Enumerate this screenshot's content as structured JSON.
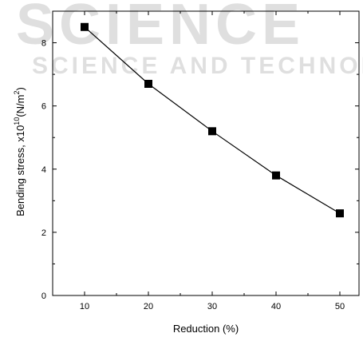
{
  "chart_data": {
    "type": "line",
    "title": "",
    "xlabel": "Reduction (%)",
    "ylabel": {
      "prefix": "Bending stress, x10",
      "exponent": "10",
      "unit_open": "(N/m",
      "unit_exp": "2",
      "unit_close": ")"
    },
    "x": [
      10,
      20,
      30,
      40,
      50
    ],
    "series": [
      {
        "values": [
          8.5,
          6.7,
          5.2,
          3.8,
          2.6
        ],
        "marker": "square",
        "color": "#000000"
      }
    ],
    "xlim": [
      5,
      53
    ],
    "ylim": [
      0,
      9
    ],
    "xticks": [
      "10",
      "20",
      "30",
      "40",
      "50"
    ],
    "yticks": [
      "0",
      "2",
      "4",
      "6",
      "8"
    ],
    "grid": false,
    "legend": "none"
  },
  "watermark": "SCIENCE AND TECHNOLOGY"
}
